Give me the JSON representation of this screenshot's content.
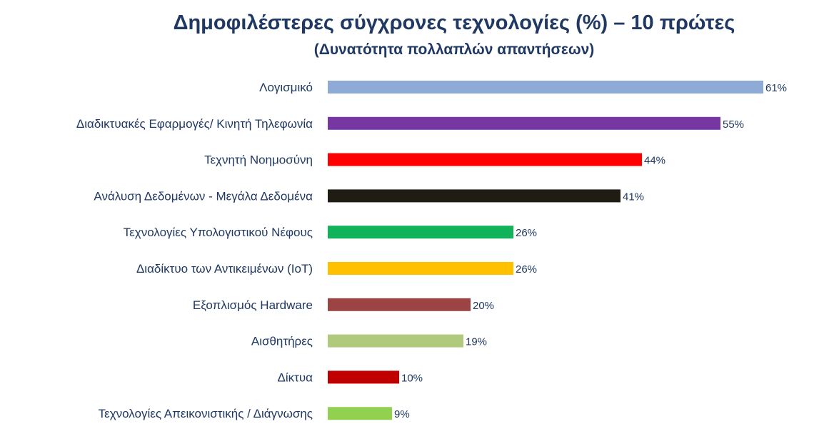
{
  "chart_data": {
    "type": "bar",
    "orientation": "horizontal",
    "title": "Δημοφιλέστερες σύγχρονες τεχνολογίες (%) – 10 πρώτες",
    "subtitle": "(Δυνατότητα πολλαπλών απαντήσεων)",
    "categories": [
      "Λογισμικό",
      "Διαδικτυακές Εφαρμογές/ Κινητή Τηλεφωνία",
      "Τεχνητή Νοημοσύνη",
      "Ανάλυση Δεδομένων - Μεγάλα Δεδομένα",
      "Τεχνολογίες Υπολογιστικού Νέφους",
      "Διαδίκτυο των Αντικειμένων (IoT)",
      "Εξοπλισμός Hardware",
      "Αισθητήρες",
      "Δίκτυα",
      "Τεχνολογίες Απεικονιστικής / Διάγνωσης"
    ],
    "values": [
      61,
      55,
      44,
      41,
      26,
      26,
      20,
      19,
      10,
      9
    ],
    "value_labels": [
      "61%",
      "55%",
      "44%",
      "41%",
      "26%",
      "26%",
      "20%",
      "19%",
      "10%",
      "9%"
    ],
    "colors": [
      "#8eaad6",
      "#7637a2",
      "#ff0000",
      "#1f1c14",
      "#10b35a",
      "#ffc000",
      "#9c4444",
      "#b0c97c",
      "#c00000",
      "#92d050"
    ],
    "xlim": [
      0,
      61
    ],
    "grid": false,
    "legend": "none"
  }
}
